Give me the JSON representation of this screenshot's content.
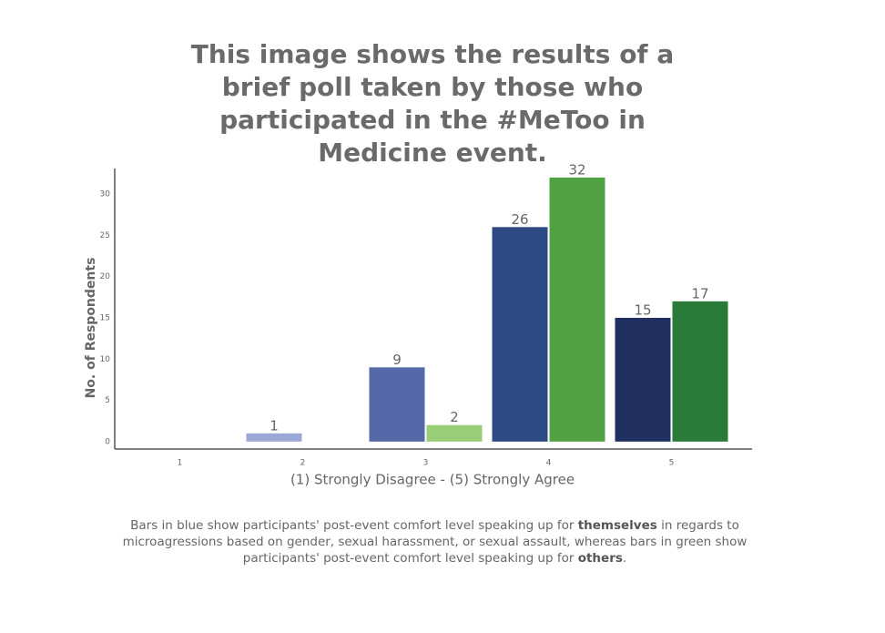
{
  "chart_data": {
    "type": "bar",
    "title": "This image shows the results of a brief poll taken by those who participated in the #MeToo in Medicine event.",
    "x_label": "(1) Strongly Disagree - (5) Strongly Agree",
    "y_label": "No. of Respondents",
    "categories": [
      "1",
      "2",
      "3",
      "4",
      "5"
    ],
    "series": [
      {
        "values": [
          null,
          1,
          9,
          26,
          15
        ],
        "colors": [
          null,
          "#9ba8d6",
          "#5568a8",
          "#2e4a85",
          "#1f2f60"
        ]
      },
      {
        "values": [
          null,
          null,
          2,
          32,
          17
        ],
        "colors": [
          null,
          null,
          "#9acd78",
          "#52a044",
          "#2a7a3a"
        ]
      }
    ],
    "ylim": [
      -0.9,
      33.1
    ],
    "yticks": [
      0,
      5,
      10,
      15,
      20,
      25,
      30
    ],
    "grid": false,
    "caption": [
      "Bars in blue show participants' post-event comfort level speaking up for ",
      "themselves",
      " in regards to microagressions based on gender, sexual harassment, or sexual assault, whereas bars in green show participants' post-event comfort level speaking up for ",
      "others",
      "."
    ]
  }
}
